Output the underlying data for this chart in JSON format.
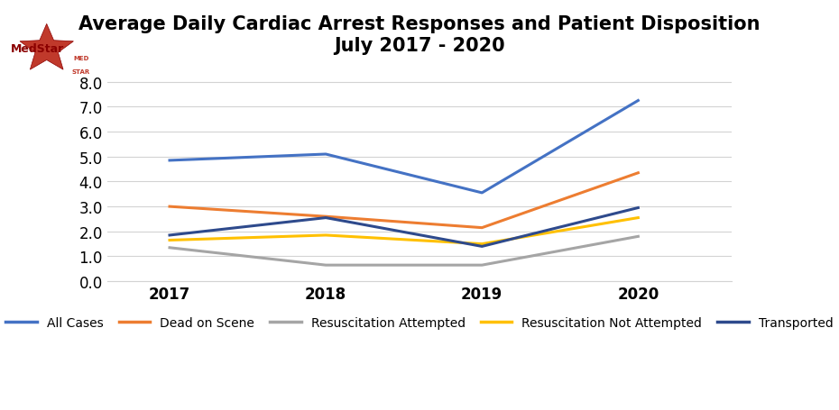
{
  "title_line1": "Average Daily Cardiac Arrest Responses and Patient Disposition",
  "title_line2": "July 2017 - 2020",
  "years": [
    2017,
    2018,
    2019,
    2020
  ],
  "series": {
    "All Cases": {
      "values": [
        4.85,
        5.1,
        3.55,
        7.25
      ],
      "color": "#4472C4",
      "linewidth": 2.2
    },
    "Dead on Scene": {
      "values": [
        3.0,
        2.6,
        2.15,
        4.35
      ],
      "color": "#ED7D31",
      "linewidth": 2.2
    },
    "Resuscitation Attempted": {
      "values": [
        1.35,
        0.65,
        0.65,
        1.8
      ],
      "color": "#A5A5A5",
      "linewidth": 2.2
    },
    "Resuscitation Not Attempted": {
      "values": [
        1.65,
        1.85,
        1.5,
        2.55
      ],
      "color": "#FFC000",
      "linewidth": 2.2
    },
    "Transported": {
      "values": [
        1.85,
        2.55,
        1.4,
        2.95
      ],
      "color": "#2E4A8C",
      "linewidth": 2.2
    }
  },
  "ylim": [
    0.0,
    8.4
  ],
  "yticks": [
    0.0,
    1.0,
    2.0,
    3.0,
    4.0,
    5.0,
    6.0,
    7.0,
    8.0
  ],
  "background_color": "#FFFFFF",
  "grid_color": "#D3D3D3",
  "title_fontsize": 15,
  "legend_fontsize": 10,
  "tick_fontsize": 12
}
